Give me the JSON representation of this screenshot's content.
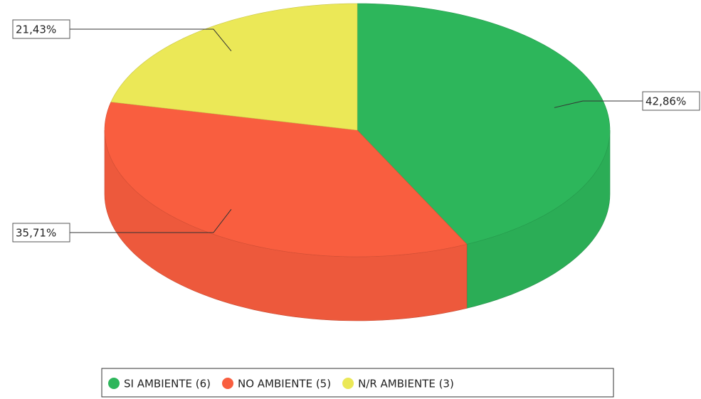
{
  "chart_data": {
    "type": "pie3d",
    "categories": [
      "SI AMBIENTE (6)",
      "NO AMBIENTE (5)",
      "N/R AMBIENTE (3)"
    ],
    "values": [
      42.86,
      35.71,
      21.43
    ],
    "value_labels": [
      "42,86%",
      "35,71%",
      "21,43%"
    ],
    "colors": [
      "#2db65b",
      "#f95e3f",
      "#ebe857"
    ],
    "legend": "bottom"
  }
}
